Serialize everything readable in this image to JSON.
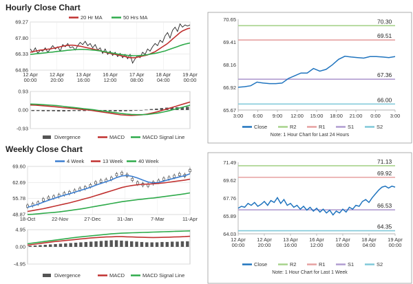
{
  "titles": {
    "hourly": "Hourly Close Chart",
    "weekly": "Weekly Close Chart"
  },
  "chart_data": [
    {
      "id": "hourly_price",
      "type": "line",
      "title": "Hourly Close Chart",
      "legend": [
        "20 Hr MA",
        "50 Hrs MA"
      ],
      "ylim": [
        64.86,
        69.27
      ],
      "yticks": [
        "69.27",
        "67.80",
        "66.33",
        "64.86"
      ],
      "xticks": [
        "12 Apr\n00:00",
        "12 Apr\n20:00",
        "13 Apr\n16:00",
        "16 Apr\n12:00",
        "17 Apr\n08:00",
        "18 Apr\n04:00",
        "19 Apr\n00:00"
      ],
      "series": [
        {
          "name": "Close",
          "color": "#222222",
          "values": [
            66.8,
            66.5,
            66.9,
            66.4,
            66.7,
            66.6,
            66.9,
            66.5,
            66.8,
            67.1,
            66.8,
            67.0,
            66.6,
            67.2,
            67.0,
            67.3,
            66.9,
            67.0,
            66.7,
            67.1,
            67.4,
            67.2,
            67.5,
            67.1,
            67.3,
            66.9,
            67.2,
            66.7,
            66.9,
            66.4,
            66.8,
            66.3,
            66.6,
            66.2,
            66.5,
            66.1,
            66.4,
            66.0,
            66.3,
            65.9,
            66.3,
            65.5,
            65.9,
            66.2,
            66.0,
            66.5,
            66.3,
            66.8,
            66.6,
            67.0,
            67.3,
            67.1,
            67.6,
            67.4,
            68.0,
            68.3,
            67.8,
            68.5,
            68.8,
            68.4,
            69.1,
            68.8,
            69.0,
            68.9,
            69.0
          ]
        },
        {
          "name": "20 Hr MA",
          "color": "#c0302f",
          "values": [
            66.5,
            66.55,
            66.6,
            66.65,
            66.7,
            66.72,
            66.75,
            66.78,
            66.8,
            66.85,
            66.9,
            66.95,
            67.0,
            67.05,
            67.1,
            67.12,
            67.15,
            67.15,
            67.12,
            67.08,
            67.05,
            67.0,
            66.95,
            66.9,
            66.85,
            66.8,
            66.75,
            66.7,
            66.65,
            66.55,
            66.5,
            66.45,
            66.4,
            66.35,
            66.3,
            66.25,
            66.2,
            66.15,
            66.1,
            66.05,
            66.0,
            66.0,
            66.0,
            66.05,
            66.1,
            66.15,
            66.2,
            66.25,
            66.35,
            66.45,
            66.55,
            66.7,
            66.85,
            67.0,
            67.15,
            67.3,
            67.5,
            67.7,
            67.9,
            68.1,
            68.3,
            68.45,
            68.55,
            68.65,
            68.7
          ]
        },
        {
          "name": "50 Hrs MA",
          "color": "#2eaa4a",
          "values": [
            66.3,
            66.32,
            66.35,
            66.38,
            66.4,
            66.42,
            66.45,
            66.48,
            66.5,
            66.52,
            66.55,
            66.58,
            66.6,
            66.62,
            66.65,
            66.68,
            66.7,
            66.72,
            66.74,
            66.75,
            66.76,
            66.76,
            66.75,
            66.74,
            66.72,
            66.7,
            66.68,
            66.65,
            66.62,
            66.58,
            66.55,
            66.5,
            66.46,
            66.42,
            66.38,
            66.34,
            66.3,
            66.27,
            66.24,
            66.21,
            66.2,
            66.19,
            66.18,
            66.18,
            66.2,
            66.22,
            66.25,
            66.28,
            66.32,
            66.36,
            66.4,
            66.45,
            66.5,
            66.56,
            66.62,
            66.7,
            66.78,
            66.86,
            66.94,
            67.02,
            67.1,
            67.18,
            67.25,
            67.3,
            67.35
          ]
        }
      ]
    },
    {
      "id": "hourly_macd",
      "type": "bar",
      "legend": [
        "Divergence",
        "MACD",
        "MACD Signal Line"
      ],
      "ylim": [
        -0.93,
        0.93
      ],
      "yticks": [
        "0.93",
        "0.00",
        "-0.93"
      ],
      "series": [
        {
          "name": "MACD",
          "color": "#c0302f",
          "values": [
            0.25,
            0.24,
            0.22,
            0.2,
            0.18,
            0.15,
            0.12,
            0.1,
            0.08,
            0.05,
            0.02,
            0.0,
            -0.04,
            -0.08,
            -0.12,
            -0.16,
            -0.2,
            -0.24,
            -0.26,
            -0.27,
            -0.26,
            -0.24,
            -0.2,
            -0.14,
            -0.08,
            0.0,
            0.08,
            0.16,
            0.24,
            0.32,
            0.4
          ]
        },
        {
          "name": "MACD Signal Line",
          "color": "#2eaa4a",
          "values": [
            0.3,
            0.29,
            0.28,
            0.26,
            0.24,
            0.22,
            0.19,
            0.16,
            0.13,
            0.1,
            0.07,
            0.04,
            0.01,
            -0.03,
            -0.06,
            -0.1,
            -0.13,
            -0.17,
            -0.2,
            -0.22,
            -0.23,
            -0.23,
            -0.22,
            -0.19,
            -0.15,
            -0.1,
            -0.04,
            0.03,
            0.1,
            0.17,
            0.24
          ]
        },
        {
          "name": "Divergence",
          "color": "#555555",
          "values": [
            -0.05,
            -0.05,
            -0.06,
            -0.06,
            -0.06,
            -0.07,
            -0.07,
            -0.06,
            -0.05,
            -0.05,
            -0.05,
            -0.04,
            -0.05,
            -0.05,
            -0.06,
            -0.06,
            -0.07,
            -0.07,
            -0.06,
            -0.05,
            -0.03,
            -0.01,
            0.02,
            0.05,
            0.07,
            0.1,
            0.12,
            0.13,
            0.14,
            0.15,
            0.16
          ]
        }
      ]
    },
    {
      "id": "hourly_levels",
      "type": "line",
      "title": "Note: 1 Hour Chart for Last 24 Hours",
      "ylim": [
        65.67,
        70.65
      ],
      "yticks": [
        "70.65",
        "69.41",
        "68.16",
        "66.92",
        "65.67"
      ],
      "xticks": [
        "3:00",
        "6:00",
        "9:00",
        "12:00",
        "15:00",
        "18:00",
        "21:00",
        "0:00",
        "3:00"
      ],
      "levels": [
        {
          "name": "R2",
          "value": 70.3,
          "label": "70.30",
          "color": "#a6d28a"
        },
        {
          "name": "R1",
          "value": 69.51,
          "label": "69.51",
          "color": "#e6a0a0"
        },
        {
          "name": "S1",
          "value": 67.36,
          "label": "67.36",
          "color": "#b09cd0"
        },
        {
          "name": "S2",
          "value": 66.0,
          "label": "66.00",
          "color": "#7fc8d8"
        }
      ],
      "series": [
        {
          "name": "Close",
          "color": "#1e73be",
          "values": [
            66.92,
            66.95,
            67.0,
            67.2,
            67.15,
            67.12,
            67.12,
            67.15,
            67.4,
            67.55,
            67.7,
            67.7,
            67.95,
            67.8,
            67.9,
            68.15,
            68.45,
            68.62,
            68.58,
            68.55,
            68.52,
            68.6,
            68.6,
            68.58,
            68.55,
            68.6
          ]
        }
      ],
      "legend": [
        "Close",
        "R2",
        "R1",
        "S1",
        "S2"
      ]
    },
    {
      "id": "weekly_price",
      "type": "line",
      "title": "Weekly Close Chart",
      "legend": [
        "4 Week",
        "13 Week",
        "40 Week"
      ],
      "ylim": [
        48.87,
        69.6
      ],
      "yticks": [
        "69.60",
        "62.69",
        "55.78",
        "48.87"
      ],
      "xticks": [
        "18-Oct",
        "22-Nov",
        "27-Dec",
        "31-Jan",
        "7-Mar",
        "11-Apr"
      ],
      "series": [
        {
          "name": "Close",
          "color": "#222222",
          "values": [
            52.5,
            53.1,
            53.8,
            55.2,
            56.0,
            56.4,
            57.0,
            57.8,
            58.3,
            59.0,
            59.8,
            60.4,
            61.3,
            62.5,
            63.2,
            63.6,
            64.4,
            66.0,
            66.6,
            65.8,
            64.0,
            62.4,
            61.8,
            61.5,
            62.5,
            63.2,
            64.1,
            64.6,
            65.3,
            66.1,
            65.7,
            67.8
          ]
        },
        {
          "name": "4 Week",
          "color": "#3a7dd0",
          "values": [
            52.0,
            52.6,
            53.3,
            54.2,
            55.0,
            55.8,
            56.5,
            57.2,
            57.8,
            58.5,
            59.2,
            59.9,
            60.6,
            61.5,
            62.3,
            63.0,
            63.8,
            64.8,
            65.5,
            65.7,
            65.3,
            64.6,
            63.7,
            62.9,
            62.5,
            62.7,
            63.3,
            63.9,
            64.5,
            65.1,
            65.6,
            66.4
          ]
        },
        {
          "name": "13 Week",
          "color": "#c0302f",
          "values": [
            50.2,
            50.6,
            51.0,
            51.4,
            51.9,
            52.4,
            52.9,
            53.4,
            53.9,
            54.5,
            55.1,
            55.7,
            56.3,
            57.0,
            57.7,
            58.4,
            59.1,
            59.8,
            60.5,
            61.0,
            61.4,
            61.7,
            61.9,
            62.0,
            62.1,
            62.3,
            62.5,
            62.8,
            63.1,
            63.4,
            63.7,
            64.1
          ]
        },
        {
          "name": "40 Week",
          "color": "#2eaa4a",
          "values": [
            48.9,
            49.0,
            49.2,
            49.4,
            49.6,
            49.8,
            50.0,
            50.3,
            50.6,
            50.9,
            51.2,
            51.6,
            52.0,
            52.4,
            52.8,
            53.2,
            53.6,
            54.0,
            54.4,
            54.7,
            55.0,
            55.3,
            55.5,
            55.8,
            56.0,
            56.3,
            56.6,
            56.9,
            57.2,
            57.5,
            57.8,
            58.2
          ]
        }
      ]
    },
    {
      "id": "weekly_macd",
      "type": "bar",
      "legend": [
        "Divergence",
        "MACD",
        "MACD Signal Line"
      ],
      "ylim": [
        -4.95,
        4.95
      ],
      "yticks": [
        "4.95",
        "0.00",
        "-4.95"
      ],
      "series": [
        {
          "name": "MACD",
          "color": "#c0302f",
          "values": [
            0.5,
            0.7,
            0.9,
            1.1,
            1.3,
            1.5,
            1.65,
            1.8,
            1.95,
            2.1,
            2.25,
            2.4,
            2.55,
            2.65,
            2.75,
            2.85,
            2.9,
            2.95,
            2.95,
            2.9,
            2.85,
            2.8,
            2.75,
            2.72,
            2.7,
            2.72,
            2.75,
            2.8,
            2.85,
            2.9,
            2.95,
            3.05
          ]
        },
        {
          "name": "MACD Signal Line",
          "color": "#2eaa4a",
          "values": [
            0.9,
            1.1,
            1.3,
            1.5,
            1.7,
            1.9,
            2.1,
            2.3,
            2.5,
            2.7,
            2.85,
            3.0,
            3.15,
            3.3,
            3.45,
            3.6,
            3.75,
            3.85,
            3.95,
            4.0,
            4.05,
            4.1,
            4.15,
            4.2,
            4.25,
            4.3,
            4.35,
            4.4,
            4.45,
            4.5,
            4.55,
            4.6
          ]
        },
        {
          "name": "Divergence",
          "color": "#555555",
          "values": [
            0.3,
            0.4,
            0.5,
            0.6,
            0.7,
            0.8,
            0.9,
            1.0,
            1.1,
            1.2,
            1.3,
            1.4,
            1.5,
            1.6,
            1.7,
            1.8,
            1.9,
            1.9,
            1.8,
            1.7,
            1.6,
            1.5,
            1.4,
            1.3,
            1.3,
            1.3,
            1.4,
            1.4,
            1.5,
            1.5,
            1.6,
            1.6
          ]
        }
      ]
    },
    {
      "id": "weekly_levels",
      "type": "line",
      "title": "Note: 1 Hour Chart for Last 1 Week",
      "ylim": [
        64.03,
        71.49
      ],
      "yticks": [
        "71.49",
        "69.62",
        "67.76",
        "65.89",
        "64.03"
      ],
      "xticks": [
        "12 Apr\n00:00",
        "12 Apr\n20:00",
        "13 Apr\n16:00",
        "16 Apr\n12:00",
        "17 Apr\n08:00",
        "18 Apr\n04:00",
        "19 Apr\n00:00"
      ],
      "levels": [
        {
          "name": "R2",
          "value": 71.13,
          "label": "71.13",
          "color": "#a6d28a"
        },
        {
          "name": "R1",
          "value": 69.92,
          "label": "69.92",
          "color": "#e6a0a0"
        },
        {
          "name": "S1",
          "value": 66.53,
          "label": "66.53",
          "color": "#b09cd0"
        },
        {
          "name": "S2",
          "value": 64.35,
          "label": "64.35",
          "color": "#7fc8d8"
        }
      ],
      "series": [
        {
          "name": "Close",
          "color": "#1e73be",
          "values": [
            66.7,
            66.9,
            66.8,
            67.2,
            67.0,
            67.3,
            66.9,
            67.1,
            67.4,
            67.0,
            67.5,
            67.3,
            67.8,
            67.2,
            67.6,
            67.0,
            67.2,
            66.8,
            67.0,
            66.6,
            66.9,
            66.5,
            66.8,
            66.4,
            66.7,
            66.3,
            66.6,
            66.2,
            66.5,
            66.0,
            66.4,
            66.2,
            66.6,
            66.3,
            66.8,
            66.6,
            67.0,
            66.9,
            67.4,
            67.6,
            67.3,
            67.8,
            68.2,
            68.6,
            68.9,
            69.0,
            68.8,
            69.0,
            68.9
          ]
        }
      ],
      "legend": [
        "Close",
        "R2",
        "R1",
        "S1",
        "S2"
      ]
    }
  ]
}
